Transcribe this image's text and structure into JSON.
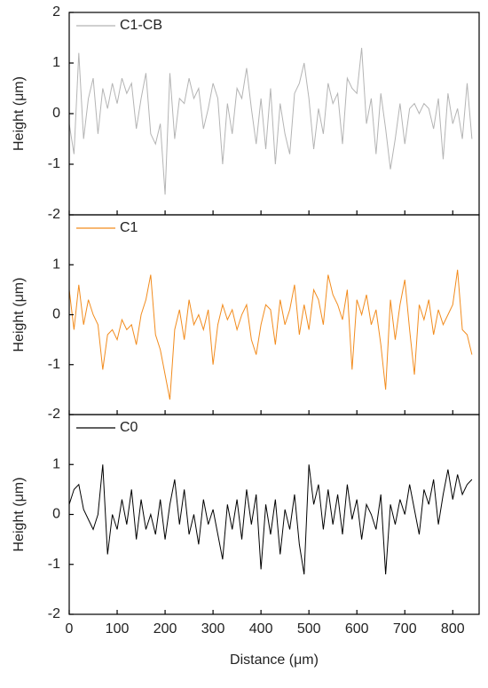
{
  "chart_data": [
    {
      "type": "line",
      "ylabel": "Height (μm)",
      "xlim": [
        0,
        855
      ],
      "ylim": [
        -2,
        2
      ],
      "yticks": [
        -2,
        -1,
        0,
        1,
        2
      ],
      "xticks": [
        0,
        100,
        200,
        300,
        400,
        500,
        600,
        700,
        800
      ],
      "x": [
        0,
        10,
        20,
        30,
        40,
        50,
        60,
        70,
        80,
        90,
        100,
        110,
        120,
        130,
        140,
        150,
        160,
        170,
        180,
        190,
        200,
        210,
        220,
        230,
        240,
        250,
        260,
        270,
        280,
        290,
        300,
        310,
        320,
        330,
        340,
        350,
        360,
        370,
        380,
        390,
        400,
        410,
        420,
        430,
        440,
        450,
        460,
        470,
        480,
        490,
        500,
        510,
        520,
        530,
        540,
        550,
        560,
        570,
        580,
        590,
        600,
        610,
        620,
        630,
        640,
        650,
        660,
        670,
        680,
        690,
        700,
        710,
        720,
        730,
        740,
        750,
        760,
        770,
        780,
        790,
        800,
        810,
        820,
        830,
        840
      ],
      "series": [
        {
          "name": "C1-CB",
          "color": "#b4b4b4",
          "values": [
            -0.2,
            -0.8,
            1.2,
            -0.5,
            0.3,
            0.7,
            -0.4,
            0.5,
            0.1,
            0.6,
            0.2,
            0.7,
            0.4,
            0.6,
            -0.3,
            0.3,
            0.8,
            -0.4,
            -0.6,
            -0.2,
            -1.6,
            0.8,
            -0.5,
            0.3,
            0.2,
            0.7,
            0.3,
            0.5,
            -0.3,
            0.1,
            0.6,
            0.3,
            -1.0,
            0.2,
            -0.4,
            0.5,
            0.3,
            0.9,
            0.1,
            -0.6,
            0.3,
            -0.7,
            0.5,
            -1.0,
            0.2,
            -0.4,
            -0.8,
            0.4,
            0.6,
            1.0,
            0.3,
            -0.7,
            0.1,
            -0.4,
            0.6,
            0.2,
            0.4,
            -0.6,
            0.7,
            0.5,
            0.4,
            1.3,
            -0.2,
            0.3,
            -0.8,
            0.4,
            -0.3,
            -1.1,
            -0.5,
            0.2,
            -0.6,
            0.1,
            0.2,
            0.0,
            0.2,
            0.1,
            -0.3,
            0.3,
            -0.9,
            0.4,
            -0.2,
            0.1,
            -0.5,
            0.6,
            -0.5
          ]
        }
      ]
    },
    {
      "type": "line",
      "ylabel": "Height (μm)",
      "xlim": [
        0,
        855
      ],
      "ylim": [
        -2,
        2
      ],
      "yticks": [
        -2,
        -1,
        0,
        1
      ],
      "xticks": [
        0,
        100,
        200,
        300,
        400,
        500,
        600,
        700,
        800
      ],
      "x": [
        0,
        10,
        20,
        30,
        40,
        50,
        60,
        70,
        80,
        90,
        100,
        110,
        120,
        130,
        140,
        150,
        160,
        170,
        180,
        190,
        200,
        210,
        220,
        230,
        240,
        250,
        260,
        270,
        280,
        290,
        300,
        310,
        320,
        330,
        340,
        350,
        360,
        370,
        380,
        390,
        400,
        410,
        420,
        430,
        440,
        450,
        460,
        470,
        480,
        490,
        500,
        510,
        520,
        530,
        540,
        550,
        560,
        570,
        580,
        590,
        600,
        610,
        620,
        630,
        640,
        650,
        660,
        670,
        680,
        690,
        700,
        710,
        720,
        730,
        740,
        750,
        760,
        770,
        780,
        790,
        800,
        810,
        820,
        830,
        840
      ],
      "series": [
        {
          "name": "C1",
          "color": "#f28c1e",
          "values": [
            0.5,
            -0.3,
            0.6,
            -0.2,
            0.3,
            0.0,
            -0.2,
            -1.1,
            -0.4,
            -0.3,
            -0.5,
            -0.1,
            -0.3,
            -0.2,
            -0.6,
            0.0,
            0.3,
            0.8,
            -0.4,
            -0.7,
            -1.2,
            -1.7,
            -0.3,
            0.1,
            -0.5,
            0.3,
            -0.2,
            0.0,
            -0.3,
            0.1,
            -1.0,
            -0.2,
            0.2,
            -0.1,
            0.1,
            -0.3,
            0.0,
            0.2,
            -0.5,
            -0.8,
            -0.2,
            0.2,
            0.1,
            -0.6,
            0.3,
            -0.2,
            0.1,
            0.6,
            -0.4,
            0.2,
            -0.3,
            0.5,
            0.3,
            -0.2,
            0.8,
            0.4,
            0.2,
            -0.1,
            0.5,
            -1.1,
            0.3,
            0.0,
            0.4,
            -0.2,
            0.1,
            -0.6,
            -1.5,
            0.3,
            -0.5,
            0.2,
            0.7,
            -0.3,
            -1.2,
            0.2,
            -0.1,
            0.3,
            -0.4,
            0.1,
            -0.2,
            0.0,
            0.2,
            0.9,
            -0.3,
            -0.4,
            -0.8
          ]
        }
      ]
    },
    {
      "type": "line",
      "ylabel": "Height (μm)",
      "xlabel": "Distance (μm)",
      "xlim": [
        0,
        855
      ],
      "ylim": [
        -2,
        2
      ],
      "yticks": [
        -2,
        -1,
        0,
        1
      ],
      "xticks": [
        0,
        100,
        200,
        300,
        400,
        500,
        600,
        700,
        800
      ],
      "x": [
        0,
        10,
        20,
        30,
        40,
        50,
        60,
        70,
        80,
        90,
        100,
        110,
        120,
        130,
        140,
        150,
        160,
        170,
        180,
        190,
        200,
        210,
        220,
        230,
        240,
        250,
        260,
        270,
        280,
        290,
        300,
        310,
        320,
        330,
        340,
        350,
        360,
        370,
        380,
        390,
        400,
        410,
        420,
        430,
        440,
        450,
        460,
        470,
        480,
        490,
        500,
        510,
        520,
        530,
        540,
        550,
        560,
        570,
        580,
        590,
        600,
        610,
        620,
        630,
        640,
        650,
        660,
        670,
        680,
        690,
        700,
        710,
        720,
        730,
        740,
        750,
        760,
        770,
        780,
        790,
        800,
        810,
        820,
        830,
        840
      ],
      "series": [
        {
          "name": "C0",
          "color": "#000000",
          "values": [
            0.2,
            0.5,
            0.6,
            0.1,
            -0.1,
            -0.3,
            0.0,
            1.0,
            -0.8,
            0.0,
            -0.3,
            0.3,
            -0.2,
            0.5,
            -0.5,
            0.3,
            -0.3,
            0.0,
            -0.4,
            0.3,
            -0.5,
            0.2,
            0.7,
            -0.2,
            0.5,
            -0.4,
            0.0,
            -0.6,
            0.3,
            -0.2,
            0.1,
            -0.4,
            -0.9,
            0.2,
            -0.3,
            0.3,
            -0.5,
            0.5,
            -0.2,
            0.4,
            -1.1,
            0.2,
            -0.4,
            0.3,
            -0.8,
            0.1,
            -0.3,
            0.4,
            -0.6,
            -1.2,
            1.0,
            0.2,
            0.6,
            -0.3,
            0.5,
            -0.2,
            0.4,
            -0.4,
            0.6,
            -0.1,
            0.3,
            -0.5,
            0.2,
            0.0,
            -0.3,
            0.4,
            -1.2,
            0.2,
            -0.2,
            0.3,
            0.0,
            0.6,
            0.1,
            -0.4,
            0.5,
            0.2,
            0.7,
            -0.2,
            0.4,
            0.9,
            0.3,
            0.8,
            0.4,
            0.6,
            0.7
          ]
        }
      ]
    }
  ]
}
